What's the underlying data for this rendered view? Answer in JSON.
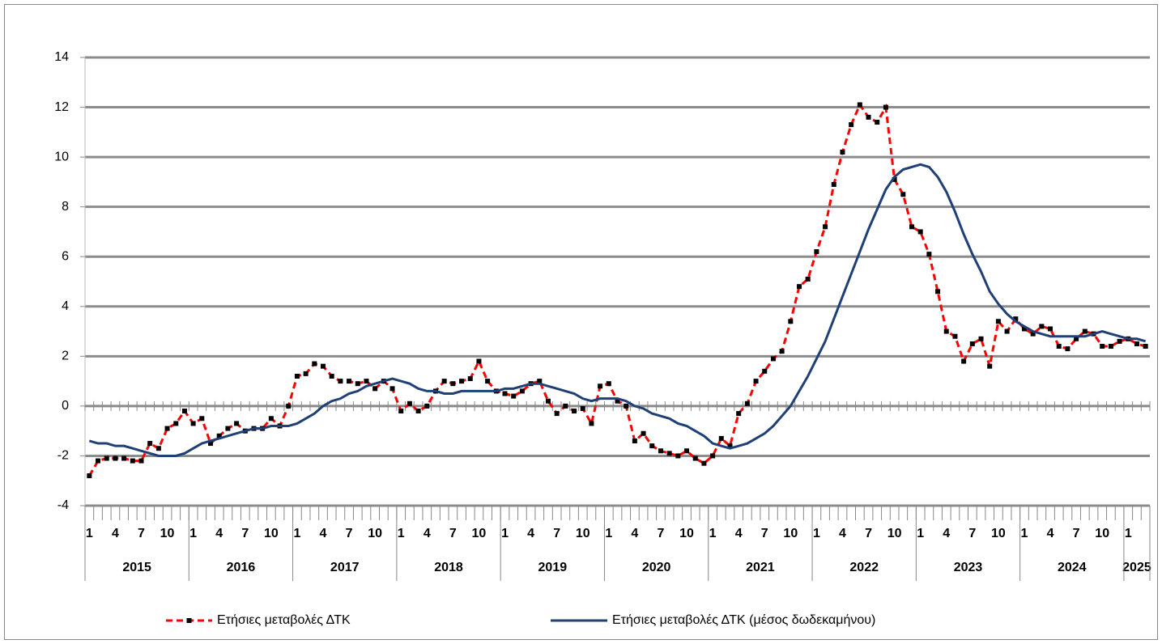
{
  "chart_data": {
    "type": "line",
    "categories": [
      "1",
      null,
      null,
      "4",
      null,
      null,
      "7",
      null,
      null,
      "10",
      null,
      null,
      "1",
      null,
      null,
      "4",
      null,
      null,
      "7",
      null,
      null,
      "10",
      null,
      null,
      "1",
      null,
      null,
      "4",
      null,
      null,
      "7",
      null,
      null,
      "10",
      null,
      null,
      "1",
      null,
      null,
      "4",
      null,
      null,
      "7",
      null,
      null,
      "10",
      null,
      null,
      "1",
      null,
      null,
      "4",
      null,
      null,
      "7",
      null,
      null,
      "10",
      null,
      null,
      "1",
      null,
      null,
      "4",
      null,
      null,
      "7",
      null,
      null,
      "10",
      null,
      null,
      "1",
      null,
      null,
      "4",
      null,
      null,
      "7",
      null,
      null,
      "10",
      null,
      null,
      "1",
      null,
      null,
      "4",
      null,
      null,
      "7",
      null,
      null,
      "10",
      null,
      null,
      "1",
      null,
      null,
      "4",
      null,
      null,
      "7",
      null,
      null,
      "10",
      null,
      null,
      "1",
      null,
      null,
      "4",
      null,
      null,
      "7",
      null,
      null,
      "10",
      null,
      null,
      "1",
      null,
      null
    ],
    "years": [
      "2015",
      "2016",
      "2017",
      "2018",
      "2019",
      "2020",
      "2021",
      "2022",
      "2023",
      "2024",
      "2025"
    ],
    "series": [
      {
        "name": "Ετήσιες μεταβολές ΔΤΚ",
        "color": "#ff0000",
        "line_style": "dashed",
        "marker": "square",
        "marker_color": "#000000",
        "values": [
          -2.8,
          -2.2,
          -2.1,
          -2.1,
          -2.1,
          -2.2,
          -2.2,
          -1.5,
          -1.7,
          -0.9,
          -0.7,
          -0.2,
          -0.7,
          -0.5,
          -1.5,
          -1.2,
          -0.9,
          -0.7,
          -1.0,
          -0.9,
          -0.9,
          -0.5,
          -0.8,
          0.0,
          1.2,
          1.3,
          1.7,
          1.6,
          1.2,
          1.0,
          1.0,
          0.9,
          1.0,
          0.7,
          1.0,
          0.7,
          -0.2,
          0.1,
          -0.2,
          0.0,
          0.6,
          1.0,
          0.9,
          1.0,
          1.1,
          1.8,
          1.0,
          0.6,
          0.5,
          0.4,
          0.6,
          0.9,
          1.0,
          0.2,
          -0.3,
          0.0,
          -0.2,
          -0.1,
          -0.7,
          0.8,
          0.9,
          0.2,
          0.0,
          -1.4,
          -1.1,
          -1.6,
          -1.8,
          -1.9,
          -2.0,
          -1.8,
          -2.1,
          -2.3,
          -2.0,
          -1.3,
          -1.6,
          -0.3,
          0.1,
          1.0,
          1.4,
          1.9,
          2.2,
          3.4,
          4.8,
          5.1,
          6.2,
          7.2,
          8.9,
          10.2,
          11.3,
          12.1,
          11.6,
          11.4,
          12.0,
          9.1,
          8.5,
          7.2,
          7.0,
          6.1,
          4.6,
          3.0,
          2.8,
          1.8,
          2.5,
          2.7,
          1.6,
          3.4,
          3.0,
          3.5,
          3.1,
          2.9,
          3.2,
          3.1,
          2.4,
          2.3,
          2.7,
          3.0,
          2.9,
          2.4,
          2.4,
          2.6,
          2.7,
          2.5,
          2.4
        ]
      },
      {
        "name": "Ετήσιες μεταβολές ΔΤΚ (μέσος δωδεκαμήνου)",
        "color": "#1f3f77",
        "line_style": "solid",
        "values": [
          -1.4,
          -1.5,
          -1.5,
          -1.6,
          -1.6,
          -1.7,
          -1.8,
          -1.9,
          -2.0,
          -2.0,
          -2.0,
          -1.9,
          -1.7,
          -1.5,
          -1.4,
          -1.3,
          -1.2,
          -1.1,
          -1.0,
          -0.9,
          -0.9,
          -0.8,
          -0.8,
          -0.8,
          -0.7,
          -0.5,
          -0.3,
          0.0,
          0.2,
          0.3,
          0.5,
          0.6,
          0.8,
          0.9,
          1.0,
          1.1,
          1.0,
          0.9,
          0.7,
          0.6,
          0.6,
          0.5,
          0.5,
          0.6,
          0.6,
          0.6,
          0.6,
          0.6,
          0.7,
          0.7,
          0.8,
          0.9,
          0.9,
          0.8,
          0.7,
          0.6,
          0.5,
          0.3,
          0.2,
          0.3,
          0.3,
          0.3,
          0.2,
          0.0,
          -0.1,
          -0.3,
          -0.4,
          -0.5,
          -0.7,
          -0.8,
          -1.0,
          -1.2,
          -1.5,
          -1.6,
          -1.7,
          -1.6,
          -1.5,
          -1.3,
          -1.1,
          -0.8,
          -0.4,
          0.0,
          0.6,
          1.2,
          1.9,
          2.6,
          3.5,
          4.4,
          5.3,
          6.2,
          7.1,
          7.9,
          8.7,
          9.2,
          9.5,
          9.6,
          9.7,
          9.6,
          9.2,
          8.6,
          7.8,
          6.9,
          6.1,
          5.4,
          4.6,
          4.1,
          3.7,
          3.4,
          3.2,
          3.0,
          2.9,
          2.8,
          2.8,
          2.8,
          2.8,
          2.8,
          2.9,
          3.0,
          2.9,
          2.8,
          2.7,
          2.7,
          2.6
        ]
      }
    ],
    "ylim": [
      -4,
      14
    ],
    "yticks": [
      -4,
      -2,
      0,
      2,
      4,
      6,
      8,
      10,
      12,
      14
    ],
    "grid": true,
    "legend": "bottom"
  }
}
